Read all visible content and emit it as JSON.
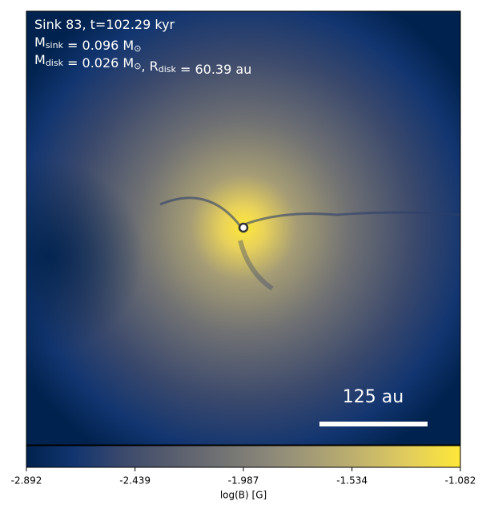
{
  "chart_data": {
    "type": "image",
    "annotation_lines": [
      [
        {
          "text": "Sink 83, t=102.29 kyr"
        }
      ],
      [
        {
          "text": "M",
          "sub": "sink"
        },
        {
          "text": " = 0.096 M",
          "sub": "⊙"
        }
      ],
      [
        {
          "text": "M",
          "sub": "disk"
        },
        {
          "text": " = 0.026 M",
          "sub": "⊙"
        },
        {
          "text": ", R",
          "sub": "disk"
        },
        {
          "text": " = 60.39 au"
        }
      ]
    ],
    "scale_bar_label": "125 au",
    "colorbar": {
      "label": "log(B) [G]",
      "lim": [
        -2.892,
        -1.082
      ],
      "ticks": [
        -2.892,
        -2.439,
        -1.987,
        -1.534,
        -1.082
      ],
      "colors": [
        "#00224e",
        "#123570",
        "#3b496c",
        "#575d6d",
        "#707173",
        "#8a8779",
        "#a69d75",
        "#c4b56c",
        "#e4cf5b",
        "#fee838"
      ]
    }
  }
}
